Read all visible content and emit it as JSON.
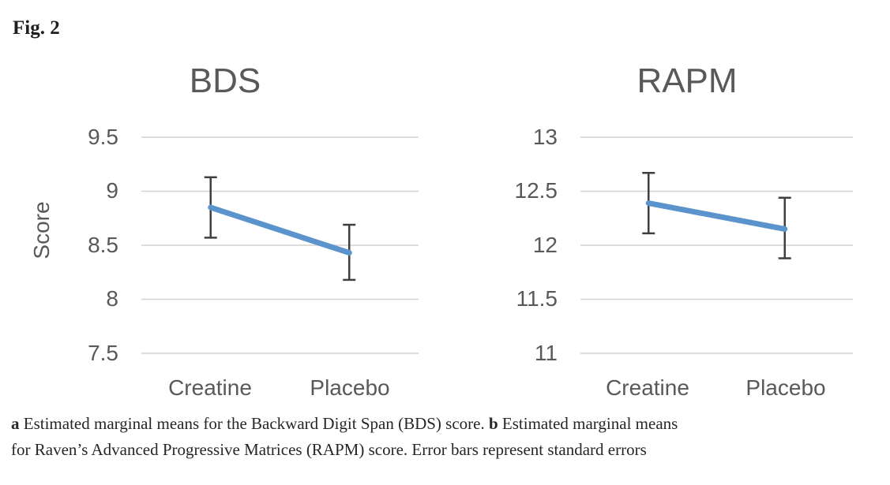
{
  "figure_label": "Fig. 2",
  "colors": {
    "line": "#5B94CD",
    "error_bar": "#3f3f3f",
    "gridline": "#d2d2d2",
    "axis_text": "#595959",
    "title_text": "#595959"
  },
  "chart_data": [
    {
      "type": "line",
      "title": "BDS",
      "ylabel": "Score",
      "xlabel": "",
      "categories": [
        "Creatine",
        "Placebo"
      ],
      "series": [
        {
          "name": "Estimated marginal mean",
          "values": [
            8.85,
            8.43
          ],
          "error_upper": [
            9.13,
            8.69
          ],
          "error_lower": [
            8.57,
            8.18
          ]
        }
      ],
      "yticks": [
        7.5,
        8,
        8.5,
        9,
        9.5
      ],
      "ytick_labels": [
        "7.5",
        "8",
        "8.5",
        "9",
        "9.5"
      ],
      "ylim": [
        7.5,
        9.5
      ],
      "grid": true,
      "legend": "none",
      "error_bars": "standard errors"
    },
    {
      "type": "line",
      "title": "RAPM",
      "ylabel": "",
      "xlabel": "",
      "categories": [
        "Creatine",
        "Placebo"
      ],
      "series": [
        {
          "name": "Estimated marginal mean",
          "values": [
            12.39,
            12.15
          ],
          "error_upper": [
            12.67,
            12.44
          ],
          "error_lower": [
            12.11,
            11.88
          ]
        }
      ],
      "yticks": [
        11,
        11.5,
        12,
        12.5,
        13
      ],
      "ytick_labels": [
        "11",
        "11.5",
        "12",
        "12.5",
        "13"
      ],
      "ylim": [
        11,
        13
      ],
      "grid": true,
      "legend": "none",
      "error_bars": "standard errors"
    }
  ],
  "caption": {
    "a_label": "a",
    "a_text": " Estimated marginal means for the Backward Digit Span (BDS) score. ",
    "b_label": "b",
    "b_text": " Estimated marginal means",
    "b_text_continued": "for Raven’s Advanced Progressive Matrices (RAPM) score. Error bars represent standard errors"
  }
}
